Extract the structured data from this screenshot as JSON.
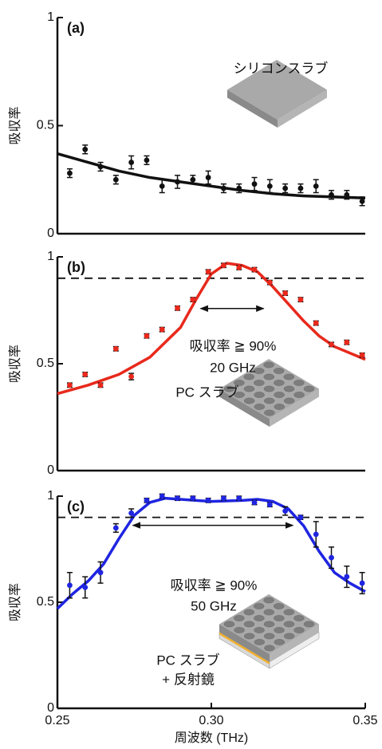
{
  "chart_data": [
    {
      "type": "scatter-fit",
      "label": "(a)",
      "y_label": "吸収率",
      "color": "#111111",
      "xlim": [
        0.25,
        0.35
      ],
      "ylim": [
        0,
        1
      ],
      "yticks": [
        0,
        0.5,
        1
      ],
      "points": {
        "x": [
          0.254,
          0.259,
          0.264,
          0.269,
          0.274,
          0.279,
          0.284,
          0.289,
          0.294,
          0.299,
          0.304,
          0.309,
          0.314,
          0.319,
          0.324,
          0.329,
          0.334,
          0.339,
          0.344,
          0.349
        ],
        "values": [
          0.28,
          0.39,
          0.31,
          0.25,
          0.33,
          0.34,
          0.22,
          0.24,
          0.25,
          0.26,
          0.21,
          0.21,
          0.23,
          0.22,
          0.21,
          0.21,
          0.22,
          0.18,
          0.18,
          0.15
        ],
        "errors": [
          0.02,
          0.02,
          0.02,
          0.02,
          0.03,
          0.02,
          0.03,
          0.03,
          0.02,
          0.03,
          0.02,
          0.02,
          0.03,
          0.03,
          0.02,
          0.02,
          0.03,
          0.02,
          0.02,
          0.02
        ]
      },
      "fit": {
        "x": [
          0.25,
          0.26,
          0.27,
          0.28,
          0.29,
          0.3,
          0.31,
          0.32,
          0.33,
          0.34,
          0.35
        ],
        "values": [
          0.37,
          0.33,
          0.29,
          0.26,
          0.24,
          0.22,
          0.2,
          0.185,
          0.175,
          0.17,
          0.165
        ]
      },
      "annotations": [
        "シリコンスラブ"
      ]
    },
    {
      "type": "scatter-fit",
      "label": "(b)",
      "y_label": "吸収率",
      "color": "#e8291c",
      "xlim": [
        0.25,
        0.35
      ],
      "ylim": [
        0,
        1
      ],
      "yticks": [
        0,
        0.5,
        1
      ],
      "threshold": 0.9,
      "band": [
        0.2965,
        0.317
      ],
      "points": {
        "x": [
          0.254,
          0.259,
          0.264,
          0.269,
          0.274,
          0.279,
          0.284,
          0.289,
          0.294,
          0.299,
          0.304,
          0.309,
          0.314,
          0.319,
          0.324,
          0.329,
          0.334,
          0.339,
          0.344,
          0.349
        ],
        "values": [
          0.4,
          0.45,
          0.4,
          0.57,
          0.44,
          0.63,
          0.66,
          0.76,
          0.8,
          0.93,
          0.96,
          0.95,
          0.94,
          0.88,
          0.83,
          0.8,
          0.69,
          0.59,
          0.6,
          0.54
        ],
        "errors": [
          0.01,
          0.01,
          0.01,
          0.01,
          0.015,
          0.01,
          0.01,
          0.01,
          0.01,
          0.01,
          0.01,
          0.01,
          0.01,
          0.01,
          0.01,
          0.01,
          0.01,
          0.01,
          0.01,
          0.01
        ]
      },
      "fit": {
        "x": [
          0.25,
          0.26,
          0.27,
          0.28,
          0.29,
          0.295,
          0.3,
          0.305,
          0.31,
          0.315,
          0.32,
          0.325,
          0.33,
          0.335,
          0.34,
          0.35
        ],
        "values": [
          0.36,
          0.4,
          0.45,
          0.53,
          0.67,
          0.8,
          0.92,
          0.97,
          0.96,
          0.93,
          0.86,
          0.78,
          0.7,
          0.63,
          0.58,
          0.52
        ]
      },
      "annotations": [
        "吸収率 ≧ 90%",
        "20 GHz",
        "PC スラブ"
      ]
    },
    {
      "type": "scatter-fit",
      "label": "(c)",
      "y_label": "吸収率",
      "x_label": "周波数 (THz)",
      "color": "#1f25e0",
      "xlim": [
        0.25,
        0.35
      ],
      "ylim": [
        0,
        1
      ],
      "yticks": [
        0,
        0.5,
        1
      ],
      "xticks": [
        0.25,
        {
          "value": 0.3,
          "label": "0.30"
        },
        0.35
      ],
      "threshold": 0.9,
      "band": [
        0.2745,
        0.3265
      ],
      "points": {
        "x": [
          0.254,
          0.259,
          0.264,
          0.269,
          0.274,
          0.279,
          0.284,
          0.289,
          0.294,
          0.299,
          0.304,
          0.309,
          0.314,
          0.319,
          0.324,
          0.329,
          0.334,
          0.339,
          0.344,
          0.349
        ],
        "values": [
          0.58,
          0.57,
          0.64,
          0.85,
          0.92,
          0.98,
          1.0,
          0.99,
          0.99,
          0.98,
          0.99,
          0.99,
          0.97,
          0.96,
          0.93,
          0.9,
          0.82,
          0.71,
          0.62,
          0.59
        ],
        "errors": [
          0.06,
          0.05,
          0.05,
          0.02,
          0.02,
          0.01,
          0.01,
          0.01,
          0.01,
          0.01,
          0.01,
          0.01,
          0.01,
          0.01,
          0.02,
          0.01,
          0.06,
          0.05,
          0.05,
          0.05
        ]
      },
      "fit": {
        "x": [
          0.25,
          0.255,
          0.26,
          0.265,
          0.27,
          0.275,
          0.28,
          0.285,
          0.29,
          0.3,
          0.31,
          0.315,
          0.32,
          0.325,
          0.33,
          0.335,
          0.34,
          0.345,
          0.35
        ],
        "values": [
          0.47,
          0.54,
          0.6,
          0.68,
          0.8,
          0.91,
          0.97,
          0.99,
          0.985,
          0.975,
          0.98,
          0.985,
          0.975,
          0.94,
          0.86,
          0.74,
          0.64,
          0.59,
          0.55
        ]
      },
      "annotations": [
        "吸収率 ≧ 90%",
        "50 GHz",
        "PC スラブ",
        "+ 反射鏡"
      ]
    }
  ]
}
